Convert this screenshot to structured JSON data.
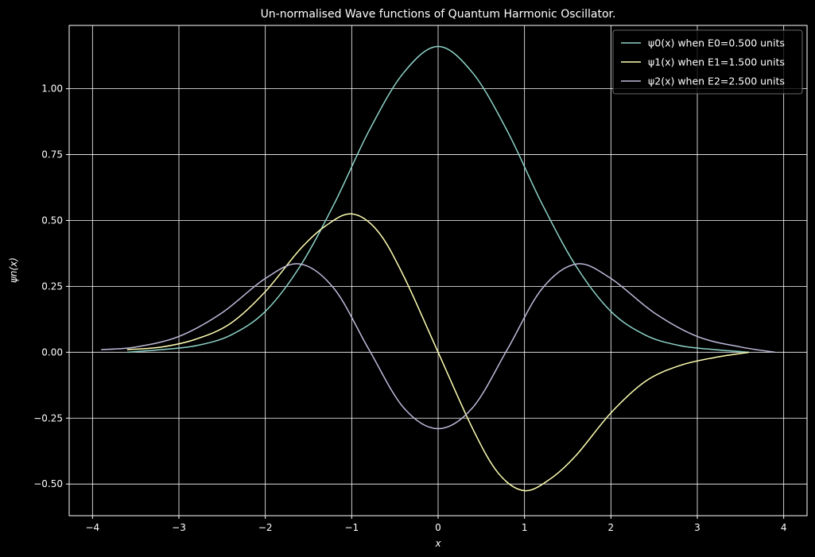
{
  "chart_data": {
    "type": "line",
    "title": "Un-normalised Wave functions of Quantum Harmonic Oscillator.",
    "xlabel": "x",
    "ylabel": "ψn(x)",
    "xlim": [
      -4.27,
      4.27
    ],
    "ylim": [
      -0.62,
      1.24
    ],
    "xticks": [
      "−4",
      "−3",
      "−2",
      "−1",
      "0",
      "1",
      "2",
      "3",
      "4"
    ],
    "yticks": [
      "−0.50",
      "−0.25",
      "0.00",
      "0.25",
      "0.50",
      "0.75",
      "1.00"
    ],
    "grid": true,
    "legend_position": "top-right",
    "series": [
      {
        "name": "ψ0(x) when E0=0.500 units",
        "color": "#8dd3c7",
        "x": [
          -3.6,
          -3.2,
          -2.8,
          -2.4,
          -2.0,
          -1.6,
          -1.2,
          -0.8,
          -0.4,
          0.0,
          0.4,
          0.8,
          1.2,
          1.6,
          2.0,
          2.4,
          2.8,
          3.2,
          3.6
        ],
        "y": [
          0.0,
          0.01,
          0.025,
          0.065,
          0.155,
          0.325,
          0.565,
          0.84,
          1.06,
          1.16,
          1.06,
          0.84,
          0.565,
          0.325,
          0.155,
          0.065,
          0.025,
          0.01,
          0.0
        ]
      },
      {
        "name": "ψ1(x) when E1=1.500 units",
        "color": "#ffffb3",
        "x": [
          -3.6,
          -3.2,
          -2.8,
          -2.4,
          -2.0,
          -1.6,
          -1.3,
          -1.0,
          -0.7,
          -0.4,
          0.0,
          0.4,
          0.7,
          1.0,
          1.3,
          1.6,
          2.0,
          2.4,
          2.8,
          3.2,
          3.6
        ],
        "y": [
          0.01,
          0.02,
          0.05,
          0.11,
          0.23,
          0.39,
          0.48,
          0.525,
          0.46,
          0.29,
          0.0,
          -0.29,
          -0.46,
          -0.525,
          -0.48,
          -0.39,
          -0.23,
          -0.11,
          -0.05,
          -0.02,
          0.0
        ]
      },
      {
        "name": "ψ2(x) when E2=2.500 units",
        "color": "#bebada",
        "x": [
          -3.9,
          -3.5,
          -3.0,
          -2.5,
          -2.0,
          -1.6,
          -1.2,
          -0.8,
          -0.4,
          0.0,
          0.4,
          0.8,
          1.2,
          1.6,
          2.0,
          2.5,
          3.0,
          3.5,
          3.9
        ],
        "y": [
          0.01,
          0.02,
          0.06,
          0.15,
          0.28,
          0.335,
          0.24,
          0.01,
          -0.21,
          -0.29,
          -0.21,
          0.01,
          0.24,
          0.335,
          0.28,
          0.15,
          0.06,
          0.02,
          0.0
        ]
      }
    ]
  }
}
